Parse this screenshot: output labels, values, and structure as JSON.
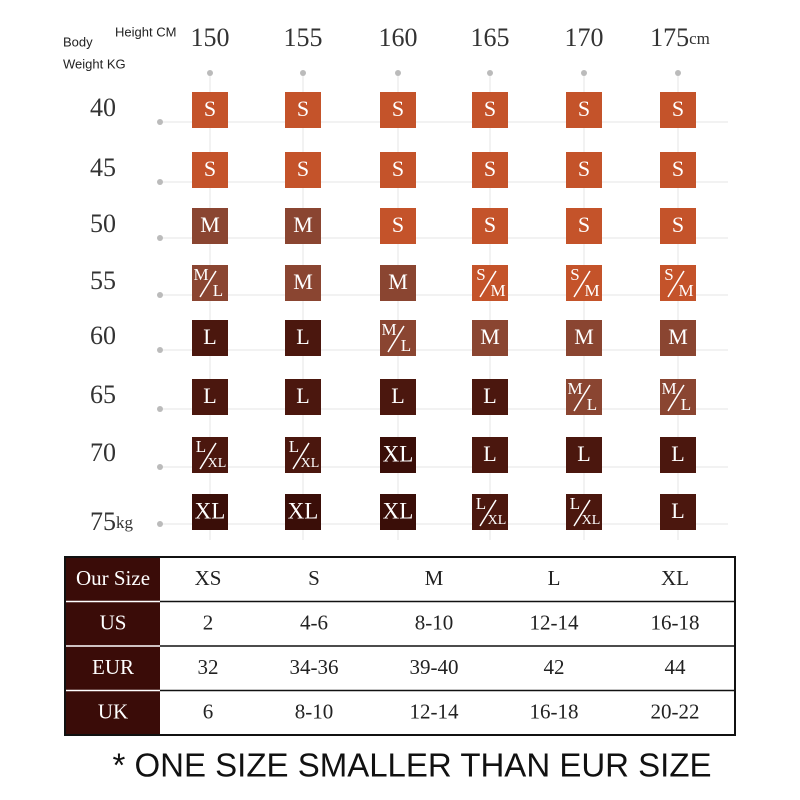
{
  "header": {
    "body": "Body",
    "height": "Height CM",
    "weight": "Weight  KG"
  },
  "heights": [
    "150",
    "155",
    "160",
    "165",
    "170",
    "175"
  ],
  "height_unit": "cm",
  "weights": [
    "40",
    "45",
    "50",
    "55",
    "60",
    "65",
    "70",
    "75"
  ],
  "weight_unit": "kg",
  "colors": {
    "S": "#c4532a",
    "M": "#8a4531",
    "L": "#4b170e",
    "XL": "#3a0e08"
  },
  "grid": [
    [
      "S",
      "S",
      "S",
      "S",
      "S",
      "S"
    ],
    [
      "S",
      "S",
      "S",
      "S",
      "S",
      "S"
    ],
    [
      "M",
      "M",
      "S",
      "S",
      "S",
      "S"
    ],
    [
      {
        "top": "M",
        "bottom": "L"
      },
      "M",
      "M",
      {
        "top": "S",
        "bottom": "M"
      },
      {
        "top": "S",
        "bottom": "M"
      },
      {
        "top": "S",
        "bottom": "M"
      }
    ],
    [
      "L",
      "L",
      {
        "top": "M",
        "bottom": "L"
      },
      "M",
      "M",
      "M"
    ],
    [
      "L",
      "L",
      "L",
      "L",
      {
        "top": "M",
        "bottom": "L"
      },
      {
        "top": "M",
        "bottom": "L"
      }
    ],
    [
      {
        "top": "L",
        "bottom": "XL"
      },
      {
        "top": "L",
        "bottom": "XL"
      },
      "XL",
      "L",
      "L",
      "L"
    ],
    [
      "XL",
      "XL",
      "XL",
      {
        "top": "L",
        "bottom": "XL"
      },
      {
        "top": "L",
        "bottom": "XL"
      },
      "L"
    ]
  ],
  "table": {
    "rows": [
      [
        "Our Size",
        "XS",
        "S",
        "M",
        "L",
        "XL"
      ],
      [
        "US",
        "2",
        "4-6",
        "8-10",
        "12-14",
        "16-18"
      ],
      [
        "EUR",
        "32",
        "34-36",
        "39-40",
        "42",
        "44"
      ],
      [
        "UK",
        "6",
        "8-10",
        "12-14",
        "16-18",
        "20-22"
      ]
    ]
  },
  "note": "* ONE SIZE SMALLER THAN EUR SIZE"
}
